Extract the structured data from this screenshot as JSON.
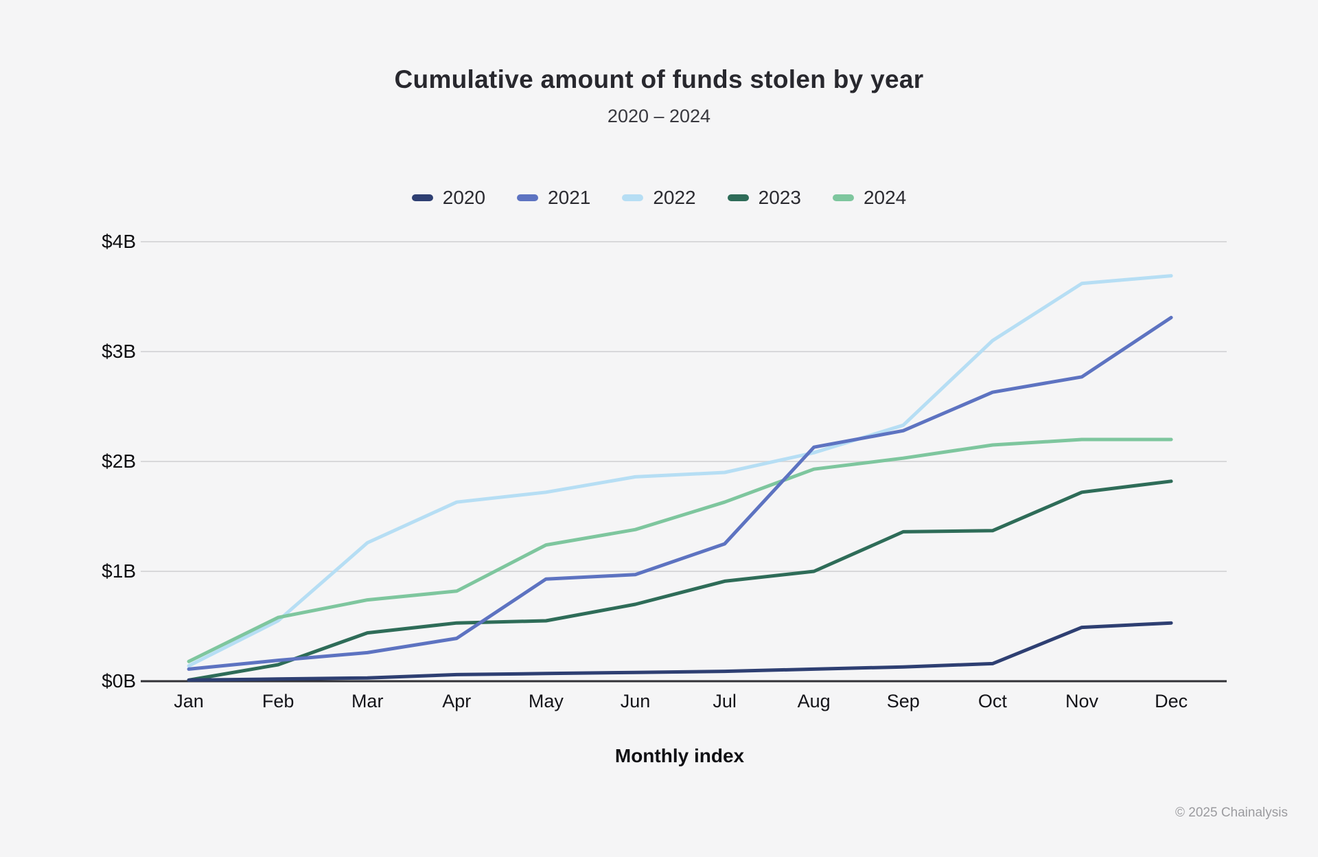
{
  "page": {
    "title": "Cumulative amount of funds stolen by year",
    "subtitle": "2020 – 2024",
    "footer_copyright": "© 2025 Chainalysis"
  },
  "chart_data": {
    "type": "line",
    "title": "Cumulative amount of funds stolen by year",
    "subtitle": "2020 – 2024",
    "xlabel": "Monthly index",
    "ylabel": "",
    "y_unit": "billions USD",
    "categories": [
      "Jan",
      "Feb",
      "Mar",
      "Apr",
      "May",
      "Jun",
      "Jul",
      "Aug",
      "Sep",
      "Oct",
      "Nov",
      "Dec"
    ],
    "y_tick_labels": [
      "$0B",
      "$1B",
      "$2B",
      "$3B",
      "$4B"
    ],
    "ylim": [
      0,
      4
    ],
    "grid": "horizontal",
    "legend_position": "top",
    "series": [
      {
        "name": "2020",
        "color": "#2e3f72",
        "values": [
          0.01,
          0.02,
          0.03,
          0.06,
          0.07,
          0.08,
          0.09,
          0.11,
          0.13,
          0.16,
          0.49,
          0.53
        ]
      },
      {
        "name": "2021",
        "color": "#5d73c1",
        "values": [
          0.11,
          0.19,
          0.26,
          0.39,
          0.93,
          0.97,
          1.25,
          2.13,
          2.28,
          2.63,
          2.77,
          3.31
        ]
      },
      {
        "name": "2022",
        "color": "#b6def4",
        "values": [
          0.14,
          0.55,
          1.26,
          1.63,
          1.72,
          1.86,
          1.9,
          2.08,
          2.33,
          3.1,
          3.62,
          3.69
        ]
      },
      {
        "name": "2023",
        "color": "#2e6c58",
        "values": [
          0.01,
          0.15,
          0.44,
          0.53,
          0.55,
          0.7,
          0.91,
          1.0,
          1.36,
          1.37,
          1.72,
          1.82
        ]
      },
      {
        "name": "2024",
        "color": "#7ec69e",
        "values": [
          0.18,
          0.58,
          0.74,
          0.82,
          1.24,
          1.38,
          1.63,
          1.93,
          2.03,
          2.15,
          2.2,
          2.2
        ]
      }
    ]
  },
  "colors": {
    "background": "#f5f5f6",
    "gridline": "#d8d8da",
    "axis_line": "#313136",
    "footer_text": "#9b9b9f"
  }
}
